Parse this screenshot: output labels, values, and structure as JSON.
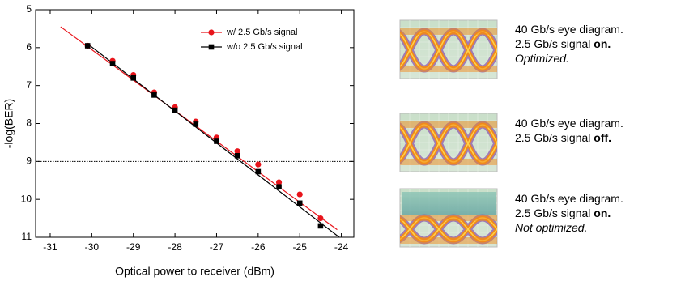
{
  "chart_data": {
    "type": "scatter",
    "xlabel": "Optical power to receiver (dBm)",
    "ylabel": "-log(BER)",
    "xlim": [
      -31.35,
      -23.7
    ],
    "xticks": [
      -31,
      -30,
      -29,
      -28,
      -27,
      -26,
      -25,
      -24
    ],
    "ylim": [
      5,
      11
    ],
    "yticks": [
      5,
      6,
      7,
      8,
      9,
      10,
      11
    ],
    "y_inverted": true,
    "x": [
      -30.1,
      -29.5,
      -29,
      -28.5,
      -28,
      -27.5,
      -27,
      -26.5,
      -26,
      -25.5,
      -25,
      -24.5
    ],
    "series": [
      {
        "name": "w/ 2.5 Gb/s signal",
        "color": "#e8141b",
        "marker": "circle",
        "values": [
          5.95,
          6.35,
          6.72,
          7.18,
          7.57,
          7.95,
          8.37,
          8.73,
          9.08,
          9.55,
          9.87,
          10.5
        ]
      },
      {
        "name": "w/o 2.5 Gb/s signal",
        "color": "#000000",
        "marker": "square",
        "values": [
          5.95,
          6.42,
          6.8,
          7.25,
          7.65,
          8.02,
          8.47,
          8.85,
          9.27,
          9.67,
          10.1,
          10.7
        ]
      }
    ],
    "fits": [
      {
        "color": "#e8141b",
        "x": [
          -30.75,
          -24.1
        ],
        "y": [
          5.45,
          10.8
        ]
      },
      {
        "color": "#000000",
        "x": [
          -30.1,
          -24.05
        ],
        "y": [
          5.9,
          11
        ]
      }
    ],
    "hline": 9,
    "legend": "upper right"
  },
  "panels": [
    {
      "lines": [
        [
          {
            "text": "40 Gb/s eye diagram.",
            "style": "normal"
          }
        ],
        [
          {
            "text": "2.5 Gb/s signal ",
            "style": "normal"
          },
          {
            "text": "on.",
            "style": "bold"
          }
        ],
        [
          {
            "text": "Optimized.",
            "style": "italic"
          }
        ]
      ]
    },
    {
      "lines": [
        [
          {
            "text": "40 Gb/s eye diagram.",
            "style": "normal"
          }
        ],
        [
          {
            "text": "2.5 Gb/s signal ",
            "style": "normal"
          },
          {
            "text": "off.",
            "style": "bold"
          }
        ]
      ]
    },
    {
      "lines": [
        [
          {
            "text": "40 Gb/s eye diagram.",
            "style": "normal"
          }
        ],
        [
          {
            "text": "2.5 Gb/s signal ",
            "style": "normal"
          },
          {
            "text": "on.",
            "style": "bold"
          }
        ],
        [
          {
            "text": "Not optimized.",
            "style": "italic"
          }
        ]
      ]
    }
  ]
}
